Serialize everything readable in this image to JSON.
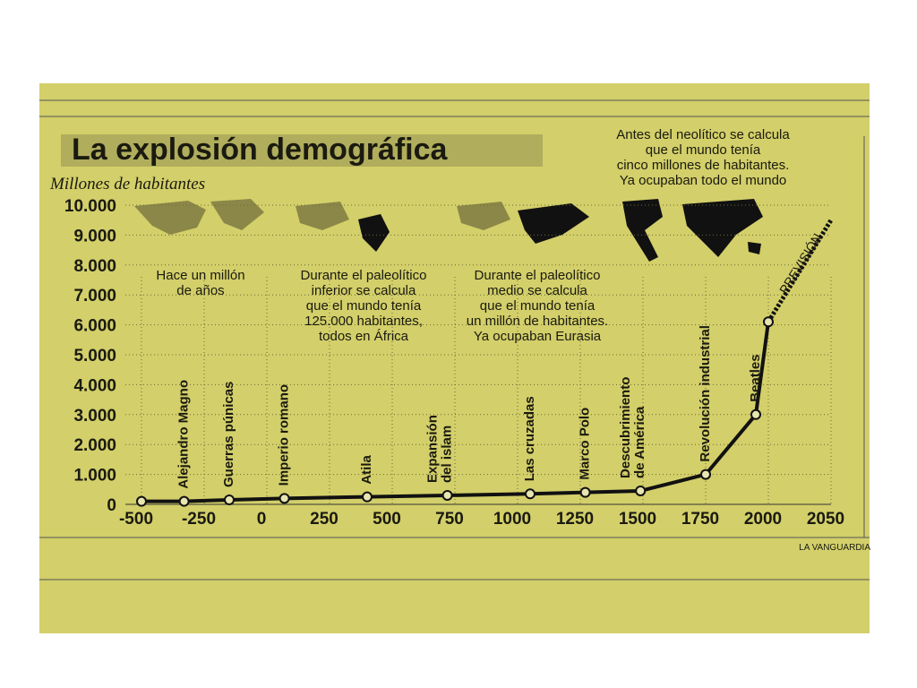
{
  "chart_data": {
    "type": "line",
    "title": "La explosión demográfica",
    "y_label": "Millones de habitantes",
    "source": "LA VANGUARDIA",
    "x": [
      -500,
      -330,
      -150,
      70,
      400,
      720,
      1050,
      1270,
      1490,
      1750,
      1950,
      2000
    ],
    "values": [
      100,
      100,
      150,
      200,
      250,
      300,
      350,
      400,
      450,
      1000,
      3000,
      6100
    ],
    "event_labels": [
      null,
      [
        "Alejandro Magno"
      ],
      [
        "Guerras púnicas"
      ],
      [
        "Imperio romano"
      ],
      [
        "Atila"
      ],
      [
        "Expansión",
        "del islam"
      ],
      [
        "Las cruzadas"
      ],
      [
        "Marco Polo"
      ],
      [
        "Descubrimiento",
        "de América"
      ],
      [
        "Revolución industrial"
      ],
      [
        "Beatles"
      ],
      null
    ],
    "color": "#111111",
    "forecast": {
      "name": "PREVISIÓN",
      "x": [
        2000,
        2050
      ],
      "values": [
        6100,
        9500
      ]
    },
    "xlim": [
      -500,
      2050
    ],
    "ylim": [
      0,
      10000
    ],
    "xticks": [
      -500,
      -250,
      0,
      250,
      500,
      750,
      1000,
      1250,
      1500,
      1750,
      2000,
      2050
    ],
    "yticks": [
      0,
      {
        "value": 1000,
        "label": "1.000"
      },
      {
        "value": 2000,
        "label": "2.000"
      },
      {
        "value": 3000,
        "label": "3.000"
      },
      {
        "value": 4000,
        "label": "4.000"
      },
      {
        "value": 5000,
        "label": "5.000"
      },
      {
        "value": 6000,
        "label": "6.000"
      },
      {
        "value": 7000,
        "label": "7.000"
      },
      {
        "value": 8000,
        "label": "8.000"
      },
      {
        "value": 9000,
        "label": "9.000"
      },
      {
        "value": 10000,
        "label": "10.000"
      }
    ],
    "grid": true,
    "annotations": [
      [
        "Antes del neolítico se calcula",
        "que el mundo tenía",
        "cinco millones de habitantes.",
        "Ya ocupaban todo el mundo"
      ],
      [
        "Hace un millón",
        "de años"
      ],
      [
        "Durante el paleolítico",
        "inferior se calcula",
        "que el mundo tenía",
        "125.000 habitantes,",
        "todos en África"
      ],
      [
        "Durante el paleolítico",
        "medio se calcula",
        "que el mundo tenía",
        "un millón de habitantes.",
        "Ya ocupaban Eurasia"
      ]
    ]
  }
}
